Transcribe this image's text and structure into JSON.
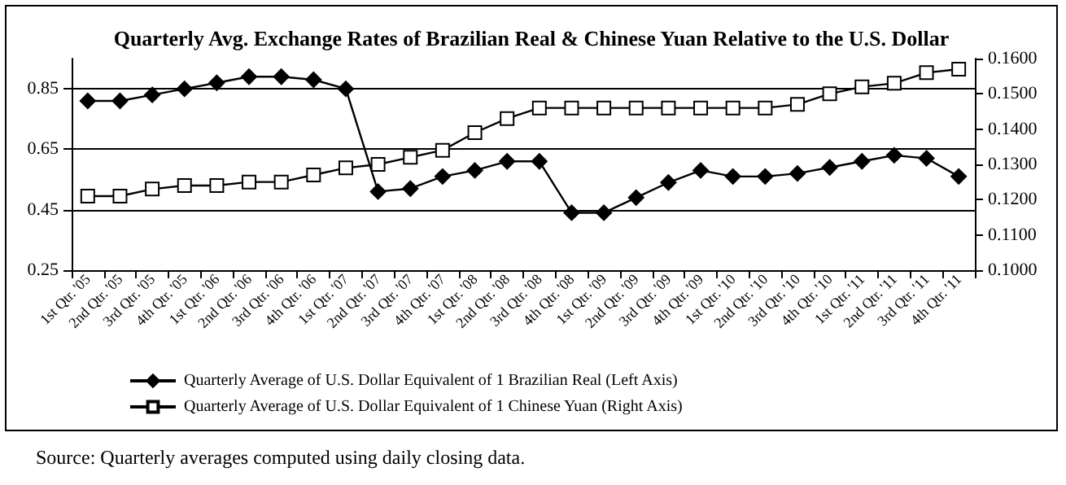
{
  "chart_data": {
    "type": "line",
    "title": "Quarterly Avg. Exchange Rates of Brazilian Real & Chinese Yuan Relative to the U.S. Dollar",
    "categories": [
      "1st Qtr. '05",
      "2nd Qtr. '05",
      "3rd Qtr. '05",
      "4th Qtr. '05",
      "1st Qtr. '06",
      "2nd Qtr. '06",
      "3rd Qtr. '06",
      "4th Qtr. '06",
      "1st Qtr. '07",
      "2nd Qtr. '07",
      "3rd Qtr. '07",
      "4th Qtr. '07",
      "1st Qtr. '08",
      "2nd Qtr. '08",
      "3rd Qtr. '08",
      "4th Qtr. '08",
      "1st Qtr. '09",
      "2nd Qtr. '09",
      "3rd Qtr. '09",
      "4th Qtr. '09",
      "1st Qtr. '10",
      "2nd Qtr. '10",
      "3rd Qtr. '10",
      "4th Qtr. '10",
      "1st Qtr. '11",
      "2nd Qtr. '11",
      "3rd Qtr. '11",
      "4th Qtr. '11"
    ],
    "series": [
      {
        "name": "Quarterly Average of U.S. Dollar Equivalent of 1 Brazilian Real (Left Axis)",
        "color": "#000000",
        "marker": "diamond",
        "values": [
          0.81,
          0.81,
          0.83,
          0.85,
          0.87,
          0.89,
          0.89,
          0.88,
          0.85,
          0.51,
          0.52,
          0.56,
          0.58,
          0.61,
          0.61,
          0.44,
          0.44,
          0.49,
          0.54,
          0.58,
          0.56,
          0.56,
          0.57,
          0.59,
          0.61,
          0.63,
          0.62,
          0.56
        ]
      },
      {
        "name": "Quarterly Average of U.S. Dollar Equivalent of 1 Chinese Yuan (Right Axis)",
        "color": "#000000",
        "marker": "square",
        "axis": "y2",
        "values": [
          0.121,
          0.121,
          0.123,
          0.124,
          0.124,
          0.125,
          0.125,
          0.127,
          0.129,
          0.13,
          0.132,
          0.134,
          0.139,
          0.143,
          0.146,
          0.146,
          0.146,
          0.146,
          0.146,
          0.146,
          0.146,
          0.146,
          0.147,
          0.15,
          0.152,
          0.153,
          0.156,
          0.157
        ]
      }
    ],
    "ylim": [
      0.25,
      0.95
    ],
    "yticks": [
      0.25,
      0.45,
      0.65,
      0.85
    ],
    "y2lim": [
      0.1,
      0.16
    ],
    "y2ticks": [
      {
        "value": 0.1,
        "label": "0.1000"
      },
      {
        "value": 0.11,
        "label": "0.1100"
      },
      {
        "value": 0.12,
        "label": "0.1200"
      },
      {
        "value": 0.13,
        "label": "0.1300"
      },
      {
        "value": 0.14,
        "label": "0.1400"
      },
      {
        "value": 0.15,
        "label": "0.1500"
      },
      {
        "value": 0.16,
        "label": "0.1600"
      }
    ],
    "grid": "y",
    "legend": "bottom",
    "line_style": "solid",
    "annotations": [
      "Source:  Quarterly averages computed using daily closing data."
    ]
  }
}
